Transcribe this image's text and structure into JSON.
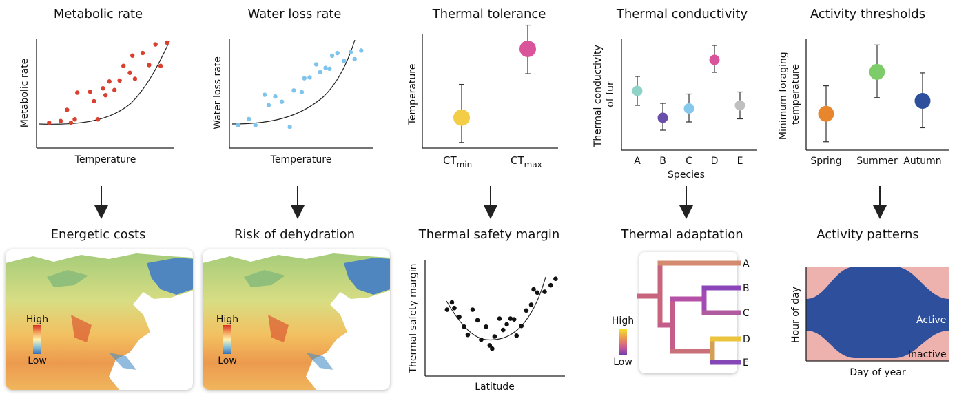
{
  "panels": {
    "metabolic": {
      "title": "Metabolic rate",
      "ylabel": "Metabolic rate",
      "xlabel": "Temperature",
      "color": "#d9402f"
    },
    "water": {
      "title": "Water loss rate",
      "ylabel": "Water loss rate",
      "xlabel": "Temperature",
      "color": "#7ec4ec"
    },
    "tolerance": {
      "title": "Thermal tolerance",
      "ylabel": "Temperature",
      "ctmin": "CT",
      "ctmin_sub": "min",
      "ctmax": "CT",
      "ctmax_sub": "max",
      "ctmin_color": "#f2cd45",
      "ctmax_color": "#d9549b"
    },
    "conductivity": {
      "title": "Thermal conductivity",
      "ylabel_line1": "Thermal conductivity",
      "ylabel_line2": "of fur",
      "xlabel": "Species"
    },
    "thresholds": {
      "title": "Activity thresholds",
      "ylabel_line1": "Minimum foraging",
      "ylabel_line2": "temperature"
    }
  },
  "outcomes": {
    "energetic": {
      "title": "Energetic costs",
      "legend_high": "High",
      "legend_low": "Low"
    },
    "dehydration": {
      "title": "Risk of dehydration",
      "legend_high": "High",
      "legend_low": "Low"
    },
    "safety": {
      "title": "Thermal safety margin",
      "ylabel": "Thermal safety margin",
      "xlabel": "Latitude"
    },
    "adaptation": {
      "title": "Thermal adaptation",
      "legend_high": "High",
      "legend_low": "Low",
      "tips": [
        "A",
        "B",
        "C",
        "D",
        "E"
      ]
    },
    "activity": {
      "title": "Activity patterns",
      "ylabel": "Hour of day",
      "xlabel": "Day of year",
      "active": "Active",
      "inactive": "Inactive",
      "active_color": "#2e4f9c",
      "inactive_color": "#edb1ae"
    }
  },
  "chart_data": [
    {
      "type": "scatter",
      "panel": "metabolic",
      "points": [
        [
          0.05,
          0.07
        ],
        [
          0.14,
          0.09
        ],
        [
          0.19,
          0.22
        ],
        [
          0.22,
          0.07
        ],
        [
          0.25,
          0.11
        ],
        [
          0.27,
          0.42
        ],
        [
          0.37,
          0.43
        ],
        [
          0.4,
          0.32
        ],
        [
          0.43,
          0.11
        ],
        [
          0.47,
          0.47
        ],
        [
          0.49,
          0.39
        ],
        [
          0.52,
          0.55
        ],
        [
          0.56,
          0.45
        ],
        [
          0.6,
          0.56
        ],
        [
          0.63,
          0.73
        ],
        [
          0.68,
          0.65
        ],
        [
          0.7,
          0.85
        ],
        [
          0.72,
          0.58
        ],
        [
          0.78,
          0.88
        ],
        [
          0.83,
          0.74
        ],
        [
          0.88,
          0.98
        ],
        [
          0.92,
          0.73
        ],
        [
          0.97,
          1.0
        ]
      ],
      "trend": "exponential"
    },
    {
      "type": "scatter",
      "panel": "water",
      "points": [
        [
          0.03,
          0.05
        ],
        [
          0.11,
          0.12
        ],
        [
          0.16,
          0.05
        ],
        [
          0.23,
          0.4
        ],
        [
          0.26,
          0.28
        ],
        [
          0.31,
          0.38
        ],
        [
          0.36,
          0.32
        ],
        [
          0.42,
          0.03
        ],
        [
          0.45,
          0.45
        ],
        [
          0.51,
          0.43
        ],
        [
          0.53,
          0.59
        ],
        [
          0.57,
          0.6
        ],
        [
          0.62,
          0.75
        ],
        [
          0.65,
          0.66
        ],
        [
          0.69,
          0.71
        ],
        [
          0.72,
          0.7
        ],
        [
          0.74,
          0.85
        ],
        [
          0.78,
          0.88
        ],
        [
          0.83,
          0.79
        ],
        [
          0.88,
          0.89
        ],
        [
          0.91,
          0.81
        ],
        [
          0.96,
          0.91
        ]
      ],
      "trend": "exponential"
    },
    {
      "type": "scatter",
      "panel": "tolerance",
      "categories": [
        "CTmin",
        "CTmax"
      ],
      "points": [
        {
          "category": "CTmin",
          "value": 0.24,
          "low": 0.03,
          "high": 0.52
        },
        {
          "category": "CTmax",
          "value": 0.82,
          "low": 0.61,
          "high": 1.02
        }
      ]
    },
    {
      "type": "scatter",
      "panel": "conductivity",
      "categories": [
        "A",
        "B",
        "C",
        "D",
        "E"
      ],
      "points": [
        {
          "category": "A",
          "value": 0.52,
          "low": 0.38,
          "high": 0.66,
          "color": "#8fd3c8"
        },
        {
          "category": "B",
          "value": 0.26,
          "low": 0.14,
          "high": 0.4,
          "color": "#6a4eab"
        },
        {
          "category": "C",
          "value": 0.35,
          "low": 0.22,
          "high": 0.49,
          "color": "#86c8ec"
        },
        {
          "category": "D",
          "value": 0.82,
          "low": 0.7,
          "high": 0.96,
          "color": "#d9549b"
        },
        {
          "category": "E",
          "value": 0.38,
          "low": 0.25,
          "high": 0.51,
          "color": "#bfbfbf"
        }
      ]
    },
    {
      "type": "scatter",
      "panel": "thresholds",
      "categories": [
        "Spring",
        "Summer",
        "Autumn"
      ],
      "points": [
        {
          "category": "Spring",
          "value": 0.3,
          "low": 0.04,
          "high": 0.56,
          "color": "#e8862d"
        },
        {
          "category": "Summer",
          "value": 0.69,
          "low": 0.45,
          "high": 0.94,
          "color": "#7ecb6a"
        },
        {
          "category": "Autumn",
          "value": 0.42,
          "low": 0.17,
          "high": 0.68,
          "color": "#2e4f9c"
        }
      ]
    },
    {
      "type": "scatter",
      "panel": "safety",
      "points": [
        [
          0.05,
          0.58
        ],
        [
          0.09,
          0.67
        ],
        [
          0.11,
          0.6
        ],
        [
          0.15,
          0.49
        ],
        [
          0.19,
          0.37
        ],
        [
          0.22,
          0.27
        ],
        [
          0.26,
          0.58
        ],
        [
          0.3,
          0.45
        ],
        [
          0.33,
          0.21
        ],
        [
          0.37,
          0.37
        ],
        [
          0.4,
          0.14
        ],
        [
          0.42,
          0.1
        ],
        [
          0.44,
          0.25
        ],
        [
          0.48,
          0.47
        ],
        [
          0.51,
          0.33
        ],
        [
          0.54,
          0.4
        ],
        [
          0.57,
          0.47
        ],
        [
          0.6,
          0.46
        ],
        [
          0.62,
          0.26
        ],
        [
          0.66,
          0.38
        ],
        [
          0.7,
          0.57
        ],
        [
          0.74,
          0.64
        ],
        [
          0.76,
          0.83
        ],
        [
          0.79,
          0.79
        ],
        [
          0.85,
          0.8
        ],
        [
          0.9,
          0.88
        ],
        [
          0.94,
          0.96
        ]
      ],
      "trend": "quadratic"
    }
  ]
}
